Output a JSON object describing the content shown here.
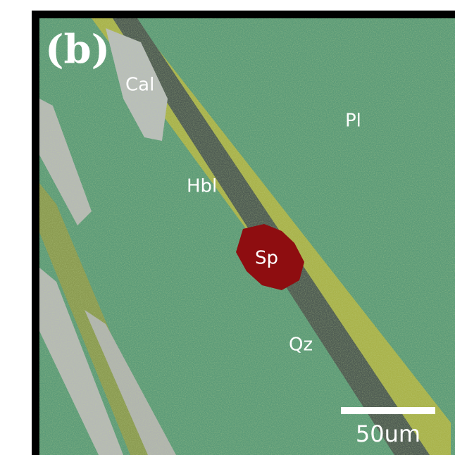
{
  "panel_label": "(b)",
  "mineral_labels": {
    "cal": "Cal",
    "pl": "Pl",
    "hbl": "Hbl",
    "sp": "Sp",
    "qz": "Qz"
  },
  "scale_bar": {
    "label": "50um"
  }
}
